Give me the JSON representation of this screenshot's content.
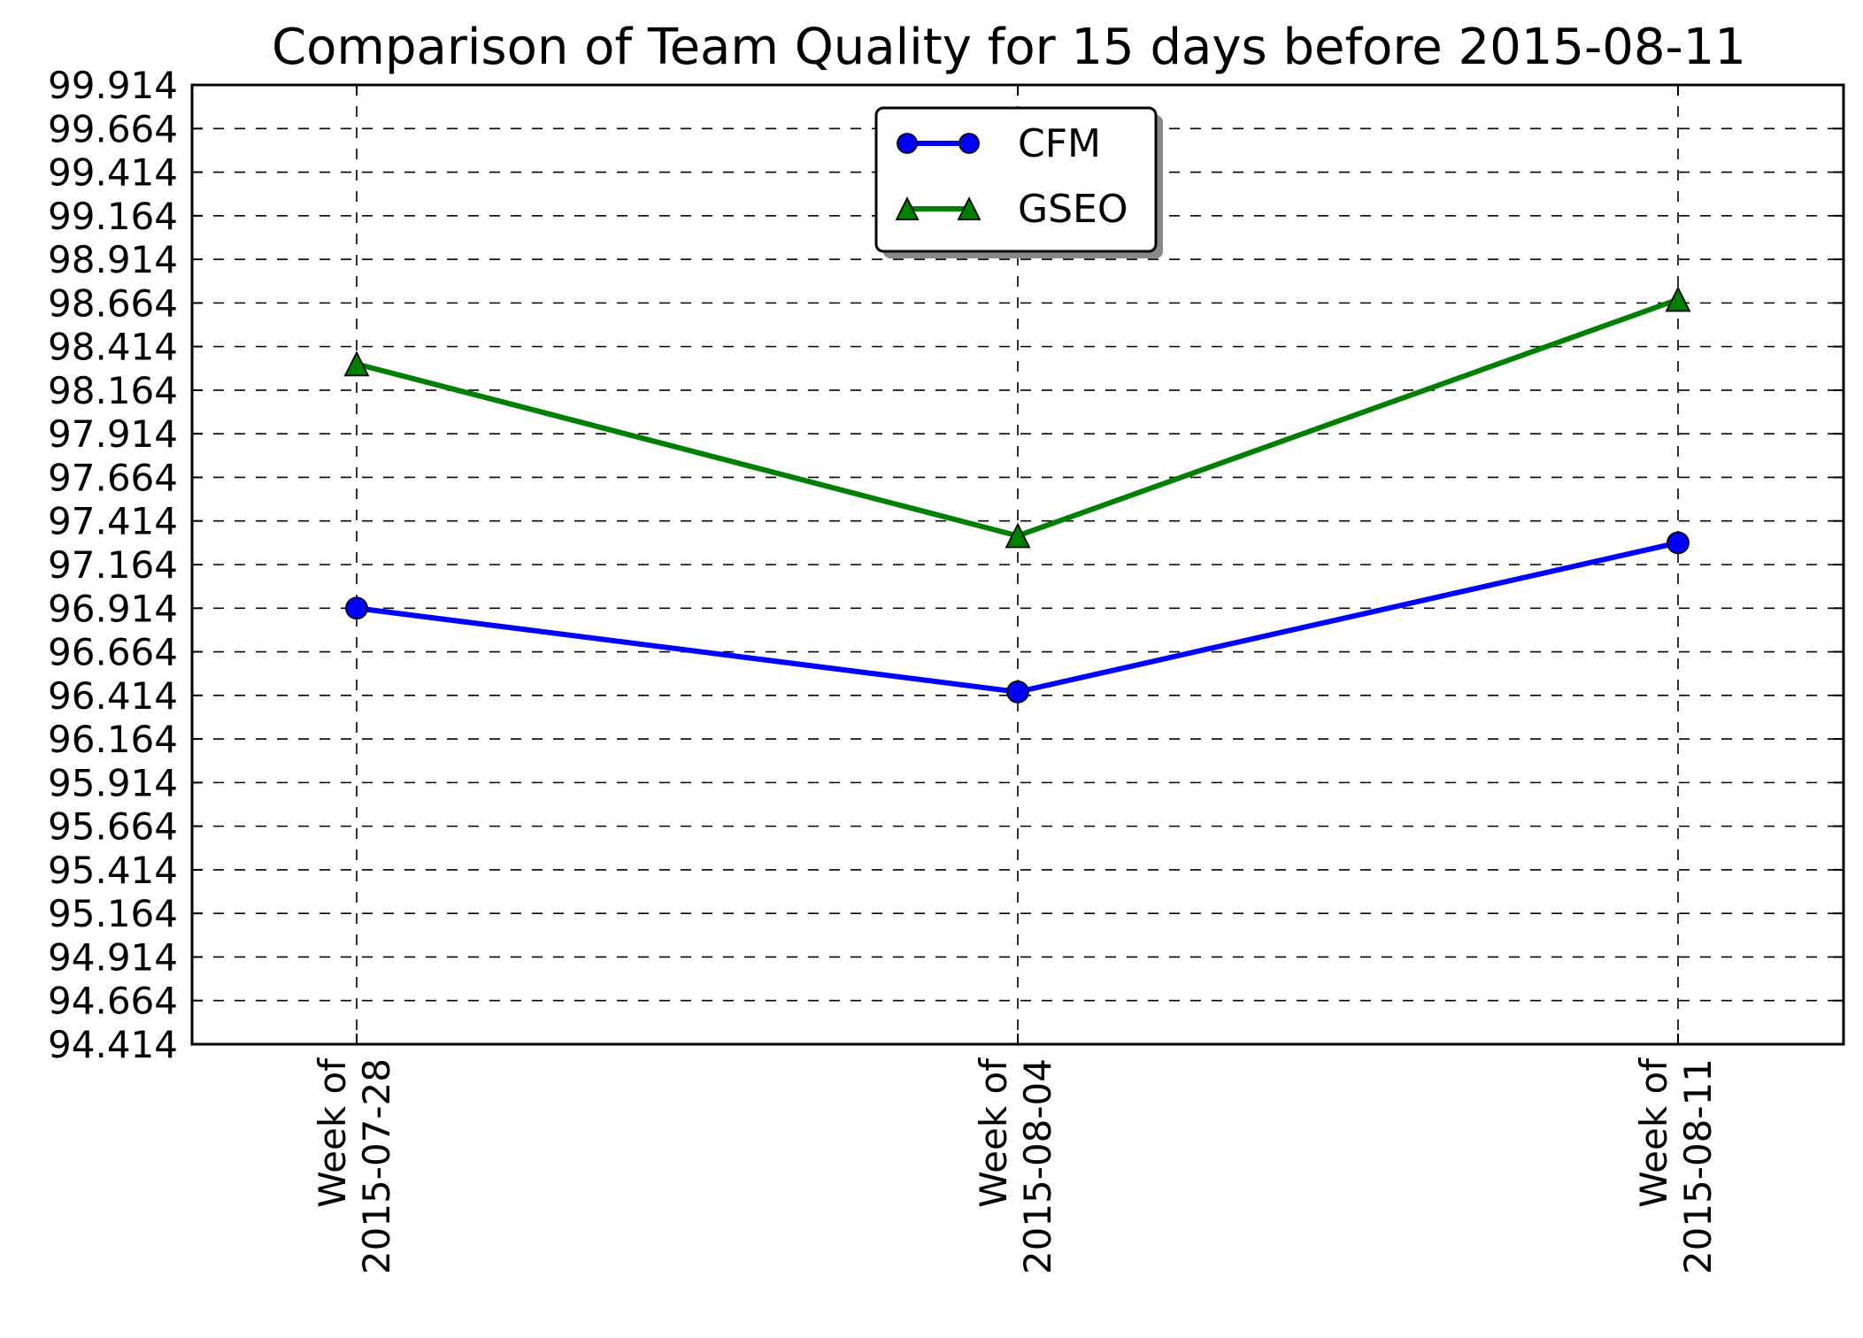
{
  "chart_data": {
    "type": "line",
    "title": "Comparison of Team Quality for 15 days before 2015-08-11",
    "xlabel": "",
    "ylabel": "",
    "categories": [
      [
        "Week of",
        "2015-07-28"
      ],
      [
        "Week of",
        "2015-08-04"
      ],
      [
        "Week of",
        "2015-08-11"
      ]
    ],
    "ylim": [
      94.414,
      99.914
    ],
    "yticks": [
      "94.414",
      "94.664",
      "94.914",
      "95.164",
      "95.414",
      "95.664",
      "95.914",
      "96.164",
      "96.414",
      "96.664",
      "96.914",
      "97.164",
      "97.414",
      "97.664",
      "97.914",
      "98.164",
      "98.414",
      "98.664",
      "98.914",
      "99.164",
      "99.414",
      "99.664",
      "99.914"
    ],
    "grid": true,
    "legend_position": "upper-center",
    "series": [
      {
        "name": "CFM",
        "color": "#0000ff",
        "marker": "circle",
        "values": [
          96.914,
          96.434,
          97.289
        ]
      },
      {
        "name": "GSEO",
        "color": "#008000",
        "marker": "triangle",
        "values": [
          98.314,
          97.329,
          98.684
        ]
      }
    ]
  }
}
